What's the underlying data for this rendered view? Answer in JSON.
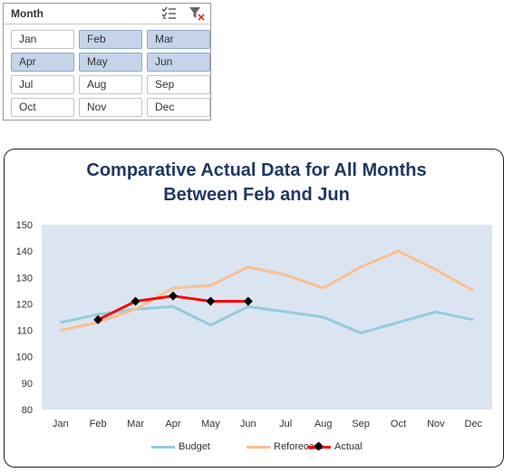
{
  "slicer": {
    "title": "Month",
    "items": [
      {
        "label": "Jan",
        "selected": false
      },
      {
        "label": "Feb",
        "selected": true
      },
      {
        "label": "Mar",
        "selected": true
      },
      {
        "label": "Apr",
        "selected": true
      },
      {
        "label": "May",
        "selected": true
      },
      {
        "label": "Jun",
        "selected": true
      },
      {
        "label": "Jul",
        "selected": false
      },
      {
        "label": "Aug",
        "selected": false
      },
      {
        "label": "Sep",
        "selected": false
      },
      {
        "label": "Oct",
        "selected": false
      },
      {
        "label": "Nov",
        "selected": false
      },
      {
        "label": "Dec",
        "selected": false
      }
    ]
  },
  "chart_data": {
    "type": "line",
    "title_line1": "Comparative Actual Data for All Months",
    "title_line2": "Between Feb and Jun",
    "categories": [
      "Jan",
      "Feb",
      "Mar",
      "Apr",
      "May",
      "Jun",
      "Jul",
      "Aug",
      "Sep",
      "Oct",
      "Nov",
      "Dec"
    ],
    "ylim": [
      80,
      150
    ],
    "yticks": [
      80,
      90,
      100,
      110,
      120,
      130,
      140,
      150
    ],
    "grid": false,
    "legend_position": "bottom",
    "plot_background": "#dbe5f1",
    "series": [
      {
        "name": "Budget",
        "color": "#92cddc",
        "values": [
          113,
          116,
          118,
          119,
          112,
          119,
          117,
          115,
          109,
          113,
          117,
          114
        ]
      },
      {
        "name": "Reforecast",
        "color": "#fac090",
        "values": [
          110,
          113,
          118,
          126,
          127,
          134,
          131,
          126,
          134,
          140,
          133,
          125
        ]
      },
      {
        "name": "Actual",
        "color": "#ff0000",
        "marker_color": "#000000",
        "values": [
          null,
          114,
          121,
          123,
          121,
          121,
          null,
          null,
          null,
          null,
          null,
          null
        ]
      }
    ]
  }
}
